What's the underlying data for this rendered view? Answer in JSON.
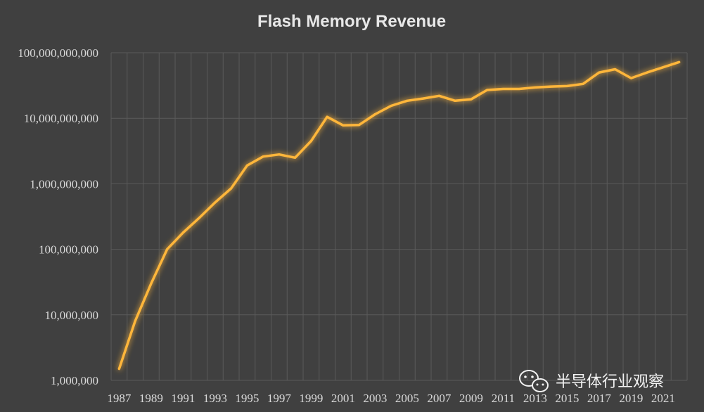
{
  "chart_data": {
    "type": "line",
    "title": "Flash Memory Revenue",
    "xlabel": "",
    "ylabel": "",
    "y_scale": "log",
    "ylim": [
      1000000,
      100000000000
    ],
    "y_ticks": [
      {
        "value": 1000000,
        "label": "1,000,000"
      },
      {
        "value": 10000000,
        "label": "10,000,000"
      },
      {
        "value": 100000000,
        "label": "100,000,000"
      },
      {
        "value": 1000000000,
        "label": "1,000,000,000"
      },
      {
        "value": 10000000000,
        "label": "10,000,000,000"
      },
      {
        "value": 100000000000,
        "label": "100,000,000,000"
      }
    ],
    "x_tick_labels": [
      "1987",
      "1989",
      "1991",
      "1993",
      "1995",
      "1997",
      "1999",
      "2001",
      "2003",
      "2005",
      "2007",
      "2009",
      "2011",
      "2013",
      "2015",
      "2017",
      "2019",
      "2021"
    ],
    "grid": true,
    "legend": "none",
    "line_color": "#FFB63A",
    "x": [
      1987,
      1988,
      1989,
      1990,
      1991,
      1992,
      1993,
      1994,
      1995,
      1996,
      1997,
      1998,
      1999,
      2000,
      2001,
      2002,
      2003,
      2004,
      2005,
      2006,
      2007,
      2008,
      2009,
      2010,
      2011,
      2012,
      2013,
      2014,
      2015,
      2016,
      2017,
      2018,
      2019,
      2020,
      2021,
      2022
    ],
    "y": [
      1500000,
      8000000,
      30000000,
      100000000,
      180000000,
      300000000,
      520000000,
      850000000,
      1900000000,
      2600000000,
      2800000000,
      2500000000,
      4500000000,
      10500000000,
      7800000000,
      7900000000,
      11500000000,
      15500000000,
      18500000000,
      20000000000,
      22000000000,
      18500000000,
      19500000000,
      27000000000,
      28000000000,
      28000000000,
      29500000000,
      30500000000,
      31000000000,
      33500000000,
      50000000000,
      56000000000,
      41000000000,
      50000000000,
      60000000000,
      72000000000
    ]
  },
  "watermark": {
    "text": "半导体行业观察",
    "icon": "wechat-icon"
  }
}
